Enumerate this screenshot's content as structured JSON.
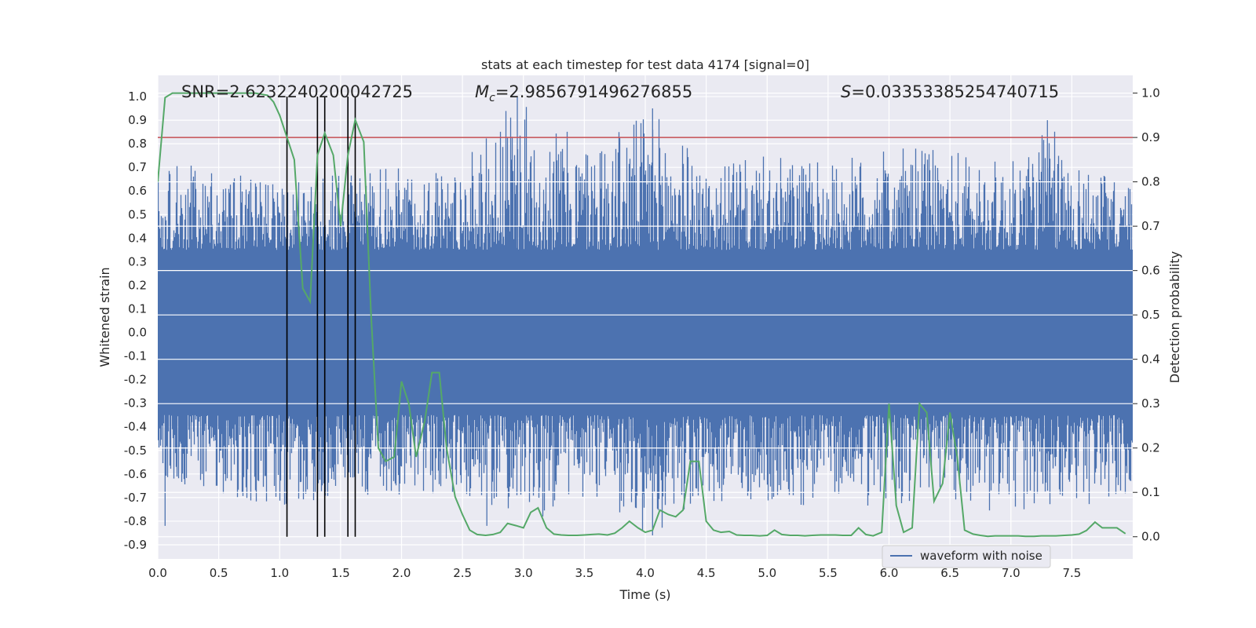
{
  "chart_data": {
    "type": "line",
    "title": "stats at each timestep for test data 4174 [signal=0]",
    "xlabel": "Time (s)",
    "ylabel_left": "Whitened strain",
    "ylabel_right": "Detection probability",
    "xlim": [
      0.0,
      8.0
    ],
    "ylim_left": [
      -0.96,
      1.09
    ],
    "ylim_right": [
      -0.05,
      1.04
    ],
    "x_ticks": [
      "0.0",
      "0.5",
      "1.0",
      "1.5",
      "2.0",
      "2.5",
      "3.0",
      "3.5",
      "4.0",
      "4.5",
      "5.0",
      "5.5",
      "6.0",
      "6.5",
      "7.0",
      "7.5"
    ],
    "y_ticks_left": [
      "1.0",
      "0.9",
      "0.8",
      "0.7",
      "0.6",
      "0.5",
      "0.4",
      "0.3",
      "0.2",
      "0.1",
      "0.0",
      "-0.1",
      "-0.2",
      "-0.3",
      "-0.4",
      "-0.5",
      "-0.6",
      "-0.7",
      "-0.8",
      "-0.9"
    ],
    "y_ticks_right": [
      "1.0",
      "0.9",
      "0.8",
      "0.7",
      "0.6",
      "0.5",
      "0.4",
      "0.3",
      "0.2",
      "0.1",
      "0.0"
    ],
    "grid": true,
    "annotations": {
      "snr": "SNR=2.6232240200042725",
      "mc_symbol": "M",
      "mc_sub": "c",
      "mc_value": "=2.9856791496276855",
      "s_symbol": "S",
      "s_value": "=0.03353385254740715"
    },
    "legend": {
      "entry": "waveform with noise",
      "placement": "lower-right"
    },
    "colors": {
      "waveform": "#4c72b0",
      "probability": "#55a868",
      "threshold": "#c44e52",
      "markers": "#000000",
      "plot_bg": "#eaeaf2",
      "grid": "#ffffff"
    },
    "threshold": 0.9,
    "vertical_markers": [
      1.06,
      1.31,
      1.37,
      1.56,
      1.62
    ],
    "waveform_envelope": {
      "description_of_values": "approximate strain envelope (time s, max, min)",
      "t": [
        0.0,
        0.5,
        1.0,
        1.5,
        2.0,
        2.5,
        2.95,
        3.5,
        4.06,
        4.5,
        5.0,
        5.5,
        6.0,
        6.5,
        7.0,
        7.3,
        7.5,
        8.0
      ],
      "max": [
        0.72,
        0.7,
        0.62,
        0.68,
        0.7,
        0.72,
        1.0,
        0.8,
        0.95,
        0.7,
        0.75,
        0.72,
        0.78,
        0.78,
        0.72,
        0.9,
        0.74,
        0.62
      ],
      "min": [
        -0.6,
        -0.7,
        -0.75,
        -0.68,
        -0.7,
        -0.68,
        -0.82,
        -0.72,
        -0.86,
        -0.72,
        -0.72,
        -0.74,
        -0.74,
        -0.7,
        -0.8,
        -0.75,
        -0.75,
        -0.7
      ]
    },
    "series": [
      {
        "name": "",
        "axis": "right",
        "x": [
          0.0,
          0.06,
          0.12,
          0.2,
          0.3,
          0.4,
          0.5,
          0.6,
          0.7,
          0.8,
          0.9,
          0.95,
          1.0,
          1.06,
          1.12,
          1.19,
          1.25,
          1.31,
          1.37,
          1.44,
          1.5,
          1.56,
          1.62,
          1.69,
          1.75,
          1.81,
          1.87,
          1.94,
          2.0,
          2.06,
          2.12,
          2.19,
          2.25,
          2.31,
          2.37,
          2.44,
          2.5,
          2.56,
          2.62,
          2.69,
          2.75,
          2.81,
          2.87,
          2.94,
          3.0,
          3.06,
          3.12,
          3.19,
          3.25,
          3.31,
          3.37,
          3.44,
          3.5,
          3.56,
          3.62,
          3.69,
          3.75,
          3.81,
          3.87,
          3.94,
          4.0,
          4.06,
          4.12,
          4.19,
          4.25,
          4.31,
          4.37,
          4.44,
          4.5,
          4.56,
          4.62,
          4.69,
          4.75,
          4.81,
          4.87,
          4.94,
          5.0,
          5.06,
          5.12,
          5.19,
          5.25,
          5.31,
          5.37,
          5.44,
          5.5,
          5.56,
          5.62,
          5.69,
          5.75,
          5.81,
          5.87,
          5.94,
          6.0,
          6.06,
          6.12,
          6.19,
          6.25,
          6.31,
          6.37,
          6.44,
          6.5,
          6.56,
          6.62,
          6.69,
          6.75,
          6.81,
          6.87,
          6.94,
          7.0,
          7.06,
          7.12,
          7.19,
          7.25,
          7.31,
          7.37,
          7.44,
          7.5,
          7.56,
          7.62,
          7.69,
          7.75,
          7.81,
          7.87,
          7.94
        ],
        "values": [
          0.8,
          0.99,
          1.0,
          1.0,
          1.0,
          1.0,
          1.0,
          1.0,
          1.0,
          1.0,
          0.995,
          0.98,
          0.95,
          0.9,
          0.85,
          0.56,
          0.53,
          0.86,
          0.91,
          0.86,
          0.7,
          0.86,
          0.94,
          0.89,
          0.5,
          0.2,
          0.17,
          0.18,
          0.35,
          0.3,
          0.18,
          0.26,
          0.37,
          0.37,
          0.2,
          0.09,
          0.05,
          0.015,
          0.005,
          0.003,
          0.005,
          0.01,
          0.03,
          0.025,
          0.02,
          0.055,
          0.065,
          0.02,
          0.006,
          0.004,
          0.003,
          0.003,
          0.004,
          0.005,
          0.006,
          0.004,
          0.008,
          0.02,
          0.035,
          0.02,
          0.01,
          0.015,
          0.06,
          0.05,
          0.045,
          0.06,
          0.17,
          0.17,
          0.035,
          0.015,
          0.01,
          0.012,
          0.004,
          0.003,
          0.003,
          0.002,
          0.003,
          0.015,
          0.005,
          0.003,
          0.003,
          0.002,
          0.003,
          0.004,
          0.004,
          0.004,
          0.003,
          0.003,
          0.02,
          0.005,
          0.002,
          0.01,
          0.3,
          0.07,
          0.01,
          0.02,
          0.3,
          0.28,
          0.08,
          0.12,
          0.28,
          0.18,
          0.015,
          0.006,
          0.003,
          0.001,
          0.002,
          0.002,
          0.002,
          0.002,
          0.001,
          0.001,
          0.002,
          0.002,
          0.002,
          0.003,
          0.004,
          0.006,
          0.014,
          0.033,
          0.02,
          0.02,
          0.02,
          0.007
        ]
      }
    ]
  }
}
